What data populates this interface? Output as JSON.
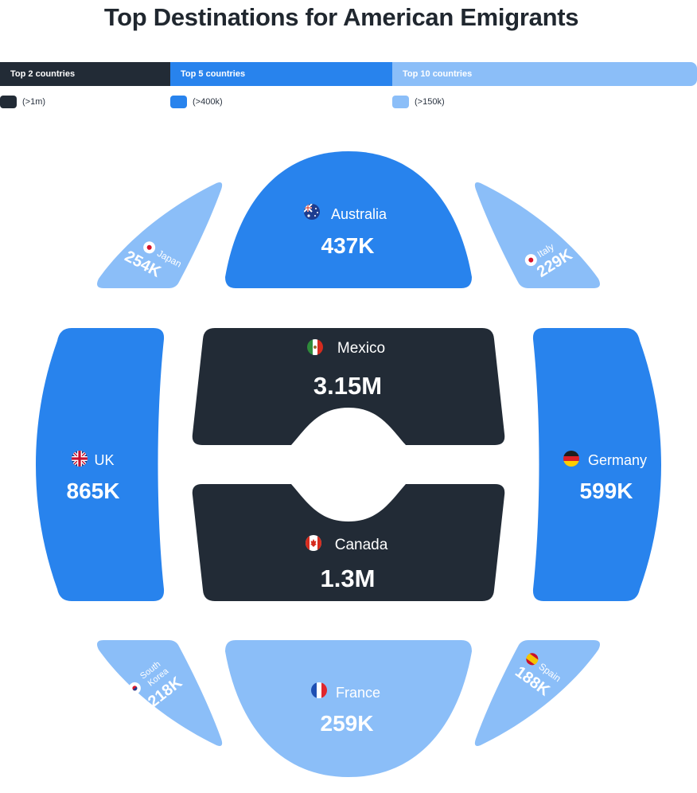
{
  "title": "Top Destinations for American Emigrants",
  "tiers": [
    {
      "label": "Top 2 countries",
      "legend": "(>1m)",
      "color": "#222B36"
    },
    {
      "label": "Top 5 countries",
      "legend": "(>400k)",
      "color": "#2883ED"
    },
    {
      "label": "Top 10 countries",
      "legend": "(>150k)",
      "color": "#8BBEF8"
    }
  ],
  "chart_data": {
    "type": "table",
    "categories": [
      "Mexico",
      "Canada",
      "UK",
      "Germany",
      "Australia",
      "France",
      "Japan",
      "Italy",
      "South Korea",
      "Spain"
    ],
    "series": [
      {
        "values": [
          3150000,
          1300000,
          865000,
          599000,
          437000,
          259000,
          254000,
          229000,
          218000,
          188000
        ]
      }
    ],
    "value_labels": [
      "3.15M",
      "1.3M",
      "865K",
      "599K",
      "437K",
      "259K",
      "254K",
      "229K",
      "218K",
      "188K"
    ],
    "tier_of_country": [
      "Top 2 countries",
      "Top 2 countries",
      "Top 5 countries",
      "Top 5 countries",
      "Top 5 countries",
      "Top 10 countries",
      "Top 10 countries",
      "Top 10 countries",
      "Top 10 countries",
      "Top 10 countries"
    ],
    "flag_icons": [
      "mexico-flag-icon",
      "canada-flag-icon",
      "uk-flag-icon",
      "germany-flag-icon",
      "australia-flag-icon",
      "france-flag-icon",
      "japan-flag-icon",
      "italy-flag-icon",
      "south-korea-flag-icon",
      "spain-flag-icon"
    ]
  }
}
